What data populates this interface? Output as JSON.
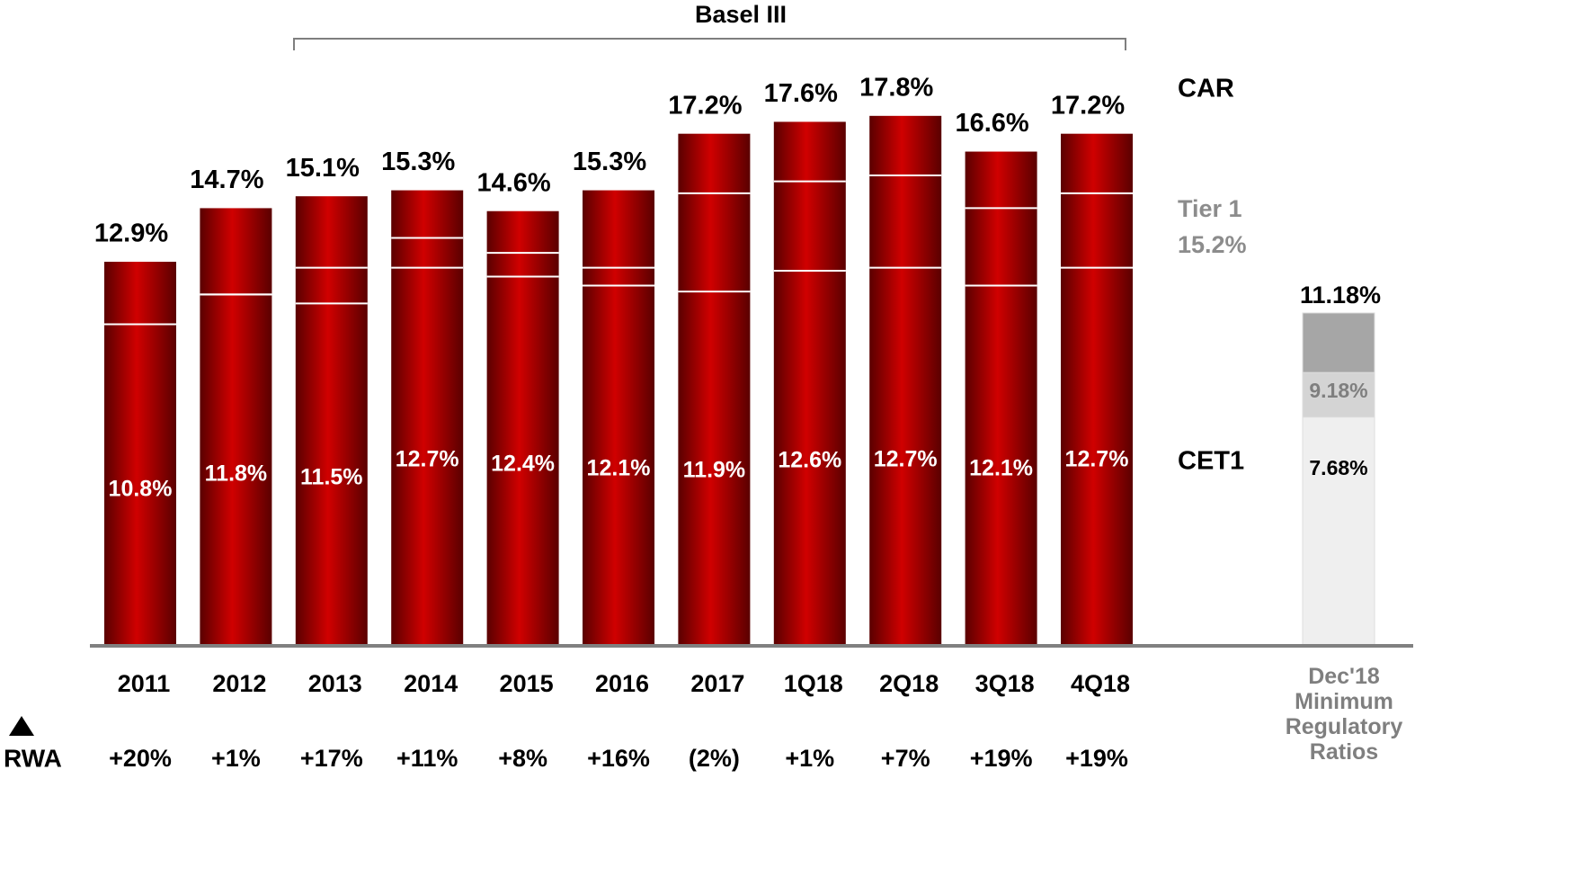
{
  "chart_data": {
    "type": "bar",
    "title": "Basel III",
    "categories": [
      "2011",
      "2012",
      "2013",
      "2014",
      "2015",
      "2016",
      "2017",
      "1Q18",
      "2Q18",
      "3Q18",
      "4Q18"
    ],
    "series": [
      {
        "name": "CAR",
        "color": "#c00000",
        "values": [
          12.9,
          14.7,
          15.1,
          15.3,
          14.6,
          15.3,
          17.2,
          17.6,
          17.8,
          16.6,
          17.2
        ],
        "value_labels": [
          "12.9%",
          "14.7%",
          "15.1%",
          "15.3%",
          "14.6%",
          "15.3%",
          "17.2%",
          "17.6%",
          "17.8%",
          "16.6%",
          "17.2%"
        ]
      },
      {
        "name": "Tier 1",
        "color": "#ffffff",
        "values": [
          10.8,
          11.8,
          12.7,
          13.7,
          13.2,
          12.7,
          15.2,
          15.6,
          15.8,
          14.7,
          15.2
        ],
        "value_labels": [
          null,
          null,
          null,
          null,
          null,
          null,
          null,
          null,
          null,
          null,
          "15.2%"
        ]
      },
      {
        "name": "CET1",
        "color": "#ffffff",
        "values": [
          10.8,
          11.8,
          11.5,
          12.7,
          12.4,
          12.1,
          11.9,
          12.6,
          12.7,
          12.1,
          12.7
        ],
        "value_labels": [
          "10.8%",
          "11.8%",
          "11.5%",
          "12.7%",
          "12.4%",
          "12.1%",
          "11.9%",
          "12.6%",
          "12.7%",
          "12.1%",
          "12.7%"
        ]
      }
    ],
    "ylim": [
      0,
      20
    ],
    "rwa": {
      "label": "RWA",
      "values": [
        "+20%",
        "+1%",
        "+17%",
        "+11%",
        "+8%",
        "+16%",
        "(2%)",
        "+1%",
        "+7%",
        "+19%",
        "+19%"
      ]
    },
    "minimum": {
      "category": "Dec'18 Minimum Regulatory Ratios",
      "values": [
        7.68,
        9.18,
        11.18
      ],
      "value_labels": [
        "7.68%",
        "9.18%",
        "11.18%"
      ],
      "colors": [
        "#efefef",
        "#d4d4d4",
        "#a6a6a6"
      ]
    }
  }
}
